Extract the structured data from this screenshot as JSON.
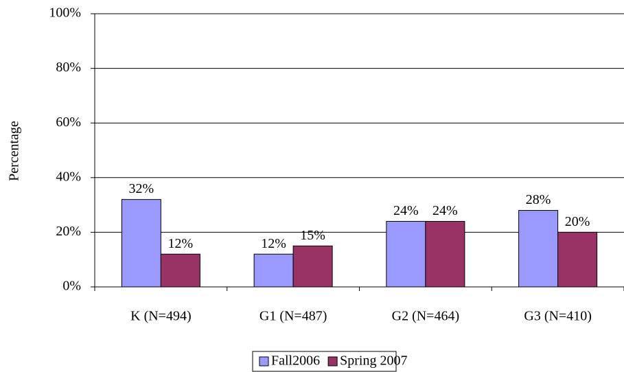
{
  "chart_data": {
    "type": "bar",
    "y_label": "Percentage",
    "categories": [
      "K (N=494)",
      "G1 (N=487)",
      "G2 (N=464)",
      "G3 (N=410)"
    ],
    "series": [
      {
        "name": "Fall2006",
        "color": "#9999ff",
        "values": [
          32,
          12,
          24,
          28
        ],
        "value_labels": [
          "32%",
          "12%",
          "24%",
          "28%"
        ]
      },
      {
        "name": "Spring 2007",
        "color": "#993366",
        "values": [
          12,
          15,
          24,
          20
        ],
        "value_labels": [
          "12%",
          "15%",
          "24%",
          "20%"
        ]
      }
    ],
    "ylim": [
      0,
      100
    ],
    "yticks": [
      {
        "value": 0,
        "label": "0%"
      },
      {
        "value": 20,
        "label": "20%"
      },
      {
        "value": 40,
        "label": "40%"
      },
      {
        "value": 60,
        "label": "60%"
      },
      {
        "value": 80,
        "label": "80%"
      },
      {
        "value": 100,
        "label": "100%"
      }
    ],
    "grid": true,
    "legend": "bottom"
  }
}
